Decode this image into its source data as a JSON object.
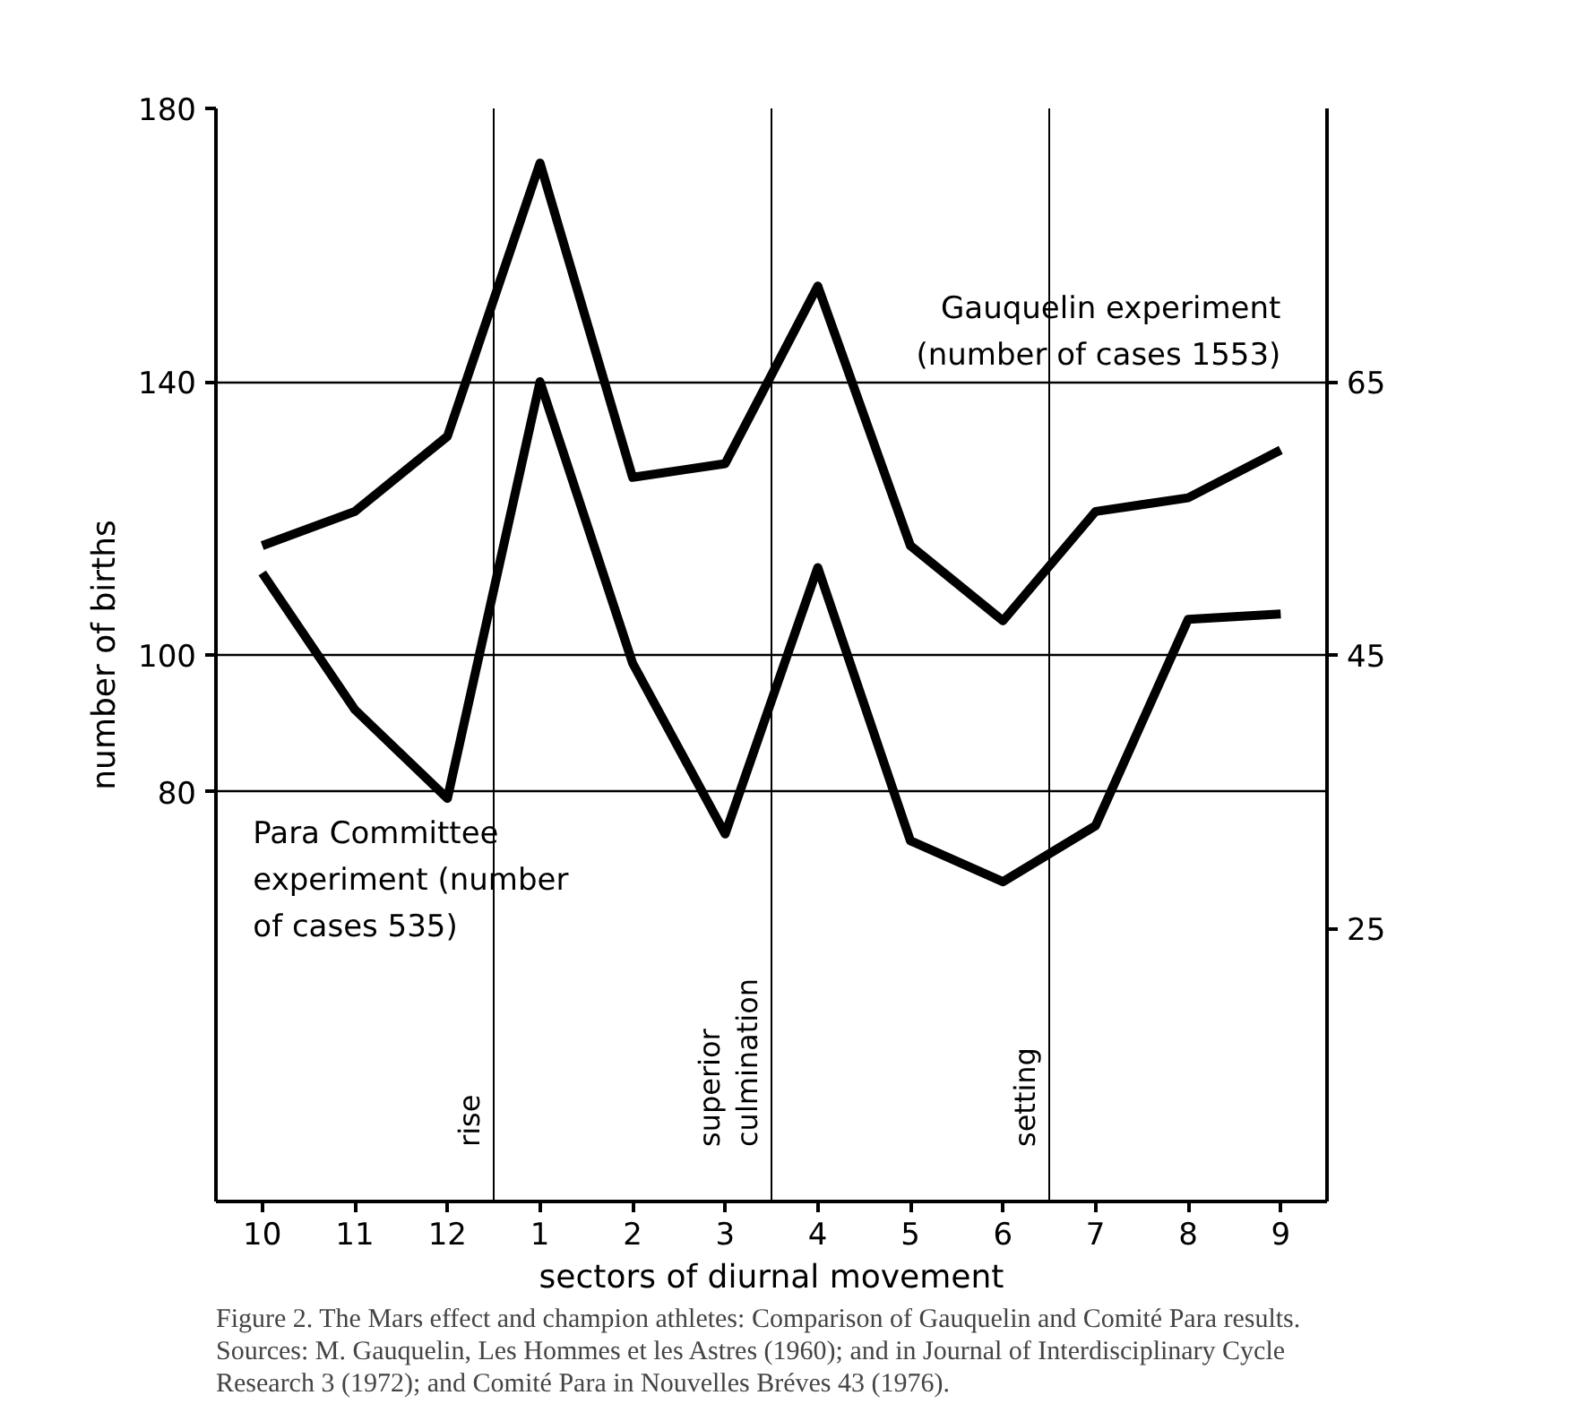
{
  "chart_data": {
    "type": "line",
    "xlabel": "sectors of diurnal movement",
    "ylabel": "number of births",
    "categories": [
      "10",
      "11",
      "12",
      "1",
      "2",
      "3",
      "4",
      "5",
      "6",
      "7",
      "8",
      "9"
    ],
    "ylim": [
      20,
      180
    ],
    "yticks": [
      80,
      100,
      140,
      180
    ],
    "y2lim": [
      5,
      85
    ],
    "y2ticks": [
      25,
      45,
      65
    ],
    "series": [
      {
        "name": "Gauquelin experiment\n(number of cases 1553)",
        "color": "#000000",
        "values": [
          116,
          121,
          132,
          172,
          126,
          128,
          154,
          116,
          105,
          121,
          123,
          130
        ]
      },
      {
        "name": "Para Committee\nexperiment (number\nof cases 535)",
        "color": "#000000",
        "axis": "y2",
        "values": [
          51,
          41,
          34.5,
          65,
          44.4,
          31.9,
          51.4,
          31.4,
          28.4,
          32.5,
          47.6,
          48
        ]
      }
    ],
    "grid": "y",
    "legend": false,
    "marker": "none",
    "line_style": "solid",
    "annotations": [
      "rise",
      "superior\nculmination",
      "setting",
      "Figure 2. The Mars effect and champion athletes: Comparison of Gauquelin and Comité Para results.",
      "Sources: M. Gauquelin, Les Hommes et les Astres (1960); and in Journal of Interdisciplinary Cycle\nResearch 3 (1972); and Comité Para in Nouvelles Bréves 43 (1976)."
    ]
  }
}
